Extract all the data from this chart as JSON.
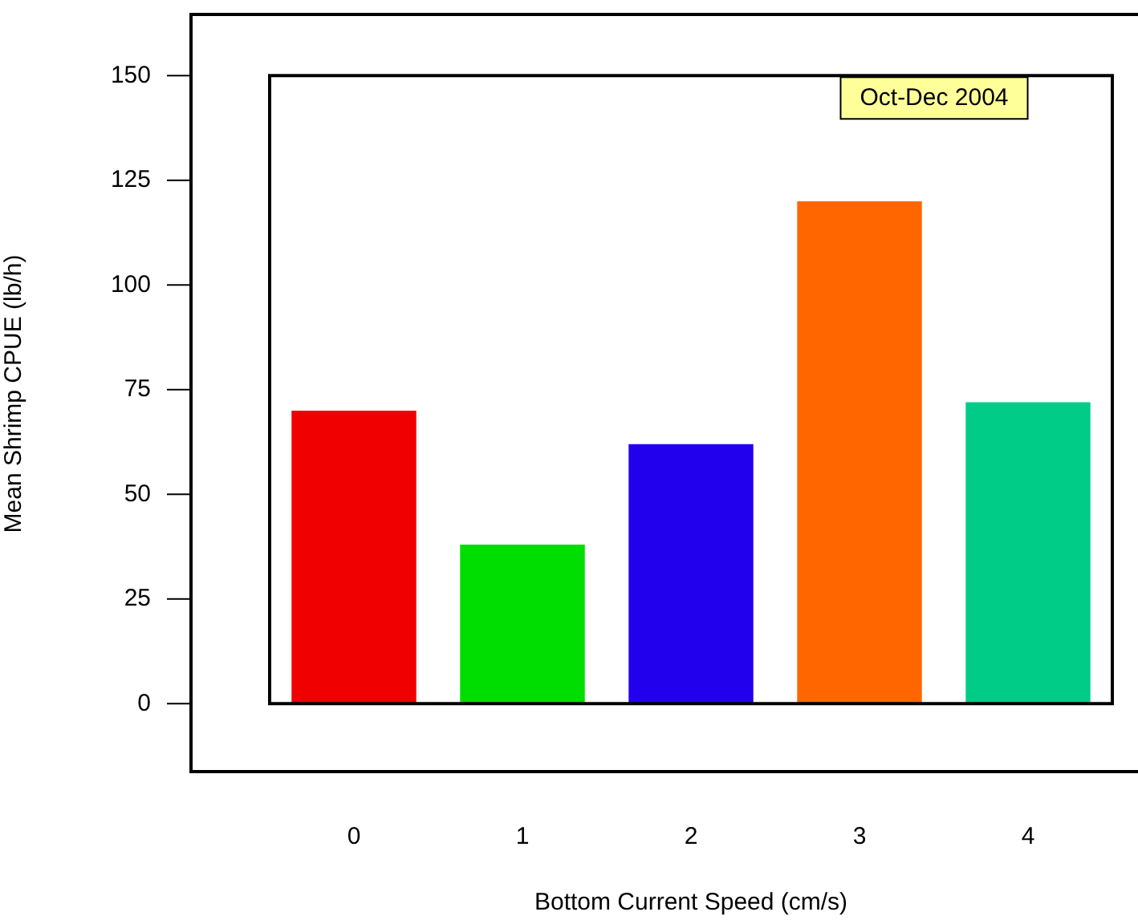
{
  "chart_data": {
    "type": "bar",
    "xlabel": "Bottom Current Speed (cm/s)",
    "ylabel": "Mean Shrimp CPUE (lb/h)",
    "annotations": [
      "Oct-Dec 2004"
    ],
    "categories": [
      "0",
      "1",
      "2",
      "3",
      "4"
    ],
    "values": [
      70,
      38,
      62,
      120,
      72
    ],
    "colors": [
      "#f00000",
      "#00dd00",
      "#2200ee",
      "#ff6600",
      "#00cc88"
    ],
    "ylim": [
      -17,
      165
    ],
    "yticks": [
      0,
      25,
      50,
      75,
      100,
      125,
      150
    ],
    "grid": false,
    "legend": false
  }
}
